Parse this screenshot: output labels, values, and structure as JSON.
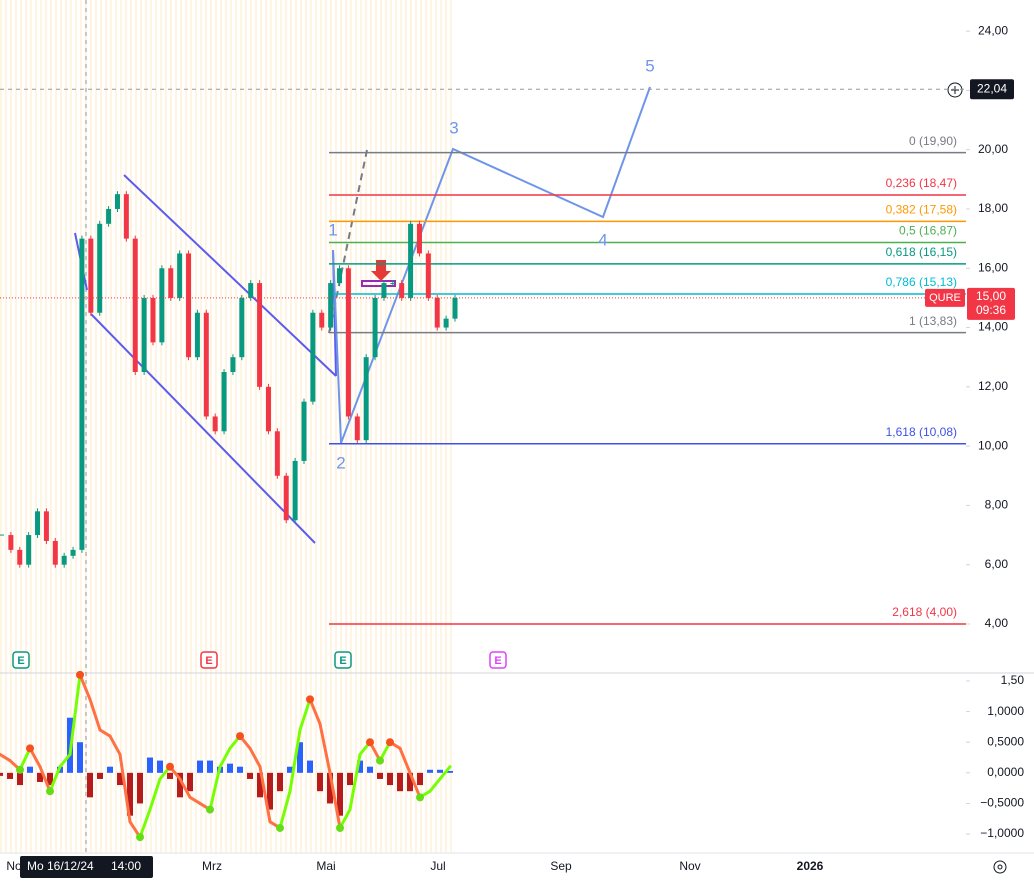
{
  "chart_data": [
    {
      "type": "candlestick",
      "symbol": "QURE",
      "values": [
        7.0,
        6.5,
        6.0,
        7.0,
        7.8,
        6.8,
        6.0,
        6.3,
        6.5,
        17.0,
        14.5,
        17.5,
        18.0,
        18.5,
        17.0,
        12.5,
        15.0,
        13.5,
        16.0,
        15.0,
        16.5,
        13.0,
        14.5,
        11.0,
        10.5,
        12.5,
        13.0,
        15.0,
        15.5,
        12.0,
        10.5,
        9.0,
        7.5,
        9.5,
        11.5,
        14.5,
        14.0,
        15.5,
        16.0,
        11.0,
        10.2,
        13.0,
        15.0,
        15.5,
        15.5,
        15.0,
        17.5,
        16.5,
        15.0,
        14.0,
        14.3,
        15.0
      ],
      "up_color": "#089981",
      "down_color": "#f23645",
      "ylim": [
        2.38,
        25.05
      ],
      "yticks": [
        {
          "value": 4,
          "label": "4,00"
        },
        {
          "value": 6,
          "label": "6,00"
        },
        {
          "value": 8,
          "label": "8,00"
        },
        {
          "value": 10,
          "label": "10,00"
        },
        {
          "value": 12,
          "label": "12,00"
        },
        {
          "value": 14,
          "label": "14,00"
        },
        {
          "value": 16,
          "label": "16,00"
        },
        {
          "value": 18,
          "label": "18,00"
        },
        {
          "value": 20,
          "label": "20,00"
        },
        {
          "value": 22,
          "label": "22,00"
        },
        {
          "value": 24,
          "label": "24,00"
        }
      ],
      "last_price": {
        "value": 15,
        "label": "15,00"
      },
      "countdown": "09:36",
      "crosshair": {
        "value": 22.04,
        "label": "22,04"
      },
      "fib_levels": [
        {
          "value": 19.9,
          "label": "0 (19,90)",
          "color": "#787b86"
        },
        {
          "value": 18.47,
          "label": "0,236 (18,47)",
          "color": "#f23645"
        },
        {
          "value": 17.58,
          "label": "0,382 (17,58)",
          "color": "#ff9800"
        },
        {
          "value": 16.87,
          "label": "0,5 (16,87)",
          "color": "#4caf50"
        },
        {
          "value": 16.15,
          "label": "0,618 (16,15)",
          "color": "#089981"
        },
        {
          "value": 15.13,
          "label": "0,786 (15,13)",
          "color": "#00bcd4"
        },
        {
          "value": 13.83,
          "label": "1 (13,83)",
          "color": "#787b86"
        },
        {
          "value": 10.08,
          "label": "1,618 (10,08)",
          "color": "#3f51e8"
        },
        {
          "value": 4.0,
          "label": "2,618 (4,00)",
          "color": "#f23645"
        }
      ],
      "wave_labels": [
        "1",
        "2",
        "3",
        "4",
        "5"
      ],
      "earnings": [
        {
          "label": "E",
          "color": "#089981"
        },
        {
          "label": "E",
          "color": "#f23645"
        },
        {
          "label": "E",
          "color": "#089981"
        },
        {
          "label": "E",
          "color": "#e040fb"
        }
      ],
      "x_labels": [
        "No",
        "Mrz",
        "Mai",
        "Jul",
        "Sep",
        "Nov",
        "2026"
      ],
      "crosshair_date": "Mo 16/12/24",
      "crosshair_time": "14:00"
    },
    {
      "type": "oscillator",
      "histogram": [
        -0.05,
        -0.1,
        -0.2,
        0.1,
        -0.15,
        -0.2,
        0.1,
        0.9,
        0.5,
        -0.4,
        -0.1,
        0.1,
        -0.2,
        -0.7,
        -0.5,
        0.25,
        0.2,
        -0.1,
        -0.4,
        -0.3,
        0.2,
        0.2,
        0.1,
        0.15,
        0.1,
        -0.1,
        -0.4,
        -0.6,
        -0.3,
        0.1,
        0.5,
        0.2,
        -0.3,
        -0.5,
        -0.7,
        -0.2,
        0.2,
        0.1,
        -0.1,
        -0.2,
        -0.3,
        -0.3,
        -0.2,
        0.05,
        0.05,
        0.03
      ],
      "line": [
        0.3,
        0.2,
        0.05,
        0.4,
        0.1,
        -0.3,
        0.1,
        0.3,
        1.6,
        1.2,
        0.7,
        0.6,
        0.3,
        -0.8,
        -1.05,
        -0.6,
        -0.1,
        0.1,
        -0.1,
        -0.4,
        -0.5,
        -0.6,
        0.1,
        0.4,
        0.6,
        0.4,
        0.1,
        -0.8,
        -0.9,
        -0.3,
        0.7,
        1.2,
        0.8,
        0.0,
        -0.9,
        -0.6,
        0.3,
        0.5,
        0.2,
        0.5,
        0.4,
        0.0,
        -0.4,
        -0.3,
        -0.1,
        0.1
      ],
      "up_color": "#76ff03",
      "down_color": "#ff7043",
      "pos_color": "#2962ff",
      "neg_color": "#b71c1c",
      "ylim": [
        -1.26,
        1.63
      ],
      "yticks": [
        {
          "value": -1,
          "label": "−1,0000"
        },
        {
          "value": -0.5,
          "label": "−0,5000"
        },
        {
          "value": 0,
          "label": "0,0000"
        },
        {
          "value": 0.5,
          "label": "0,5000"
        },
        {
          "value": 1,
          "label": "1,0000"
        },
        {
          "value": 1.5,
          "label": "1,50"
        }
      ]
    }
  ]
}
